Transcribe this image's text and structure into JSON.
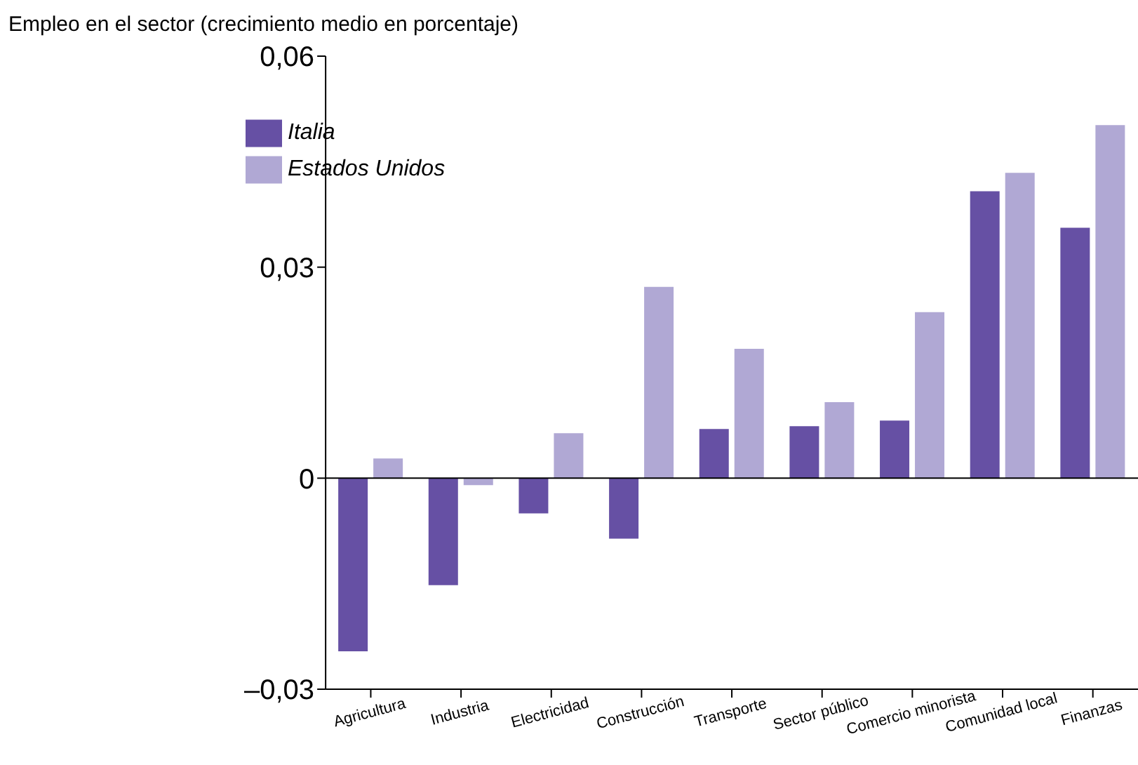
{
  "chart_data": {
    "type": "bar",
    "title": "Empleo en el sector (crecimiento medio en porcentaje)",
    "categories": [
      "Agricultura",
      "Industria",
      "Electricidad",
      "Construcción",
      "Transporte",
      "Sector público",
      "Comercio minorista",
      "Comunidad local",
      "Finanzas"
    ],
    "series": [
      {
        "name": "Italia",
        "color": "#6650a4",
        "values": [
          -0.0246,
          -0.0152,
          -0.005,
          -0.0086,
          0.007,
          0.0074,
          0.0082,
          0.0408,
          0.0356
        ]
      },
      {
        "name": "Estados Unidos",
        "color": "#b0a8d4",
        "values": [
          0.0028,
          -0.001,
          0.0064,
          0.0272,
          0.0184,
          0.0108,
          0.0236,
          0.0434,
          0.0502
        ]
      }
    ],
    "ylim": [
      -0.03,
      0.06
    ],
    "yticks": [
      {
        "value": -0.03,
        "label": "–0,03"
      },
      {
        "value": 0,
        "label": "0"
      },
      {
        "value": 0.03,
        "label": "0,03"
      },
      {
        "value": 0.06,
        "label": "0,06"
      }
    ],
    "ref_lines": [
      {
        "axis": "y",
        "value": 0,
        "color": "#000000"
      }
    ],
    "grid": false,
    "legend": "top left"
  }
}
